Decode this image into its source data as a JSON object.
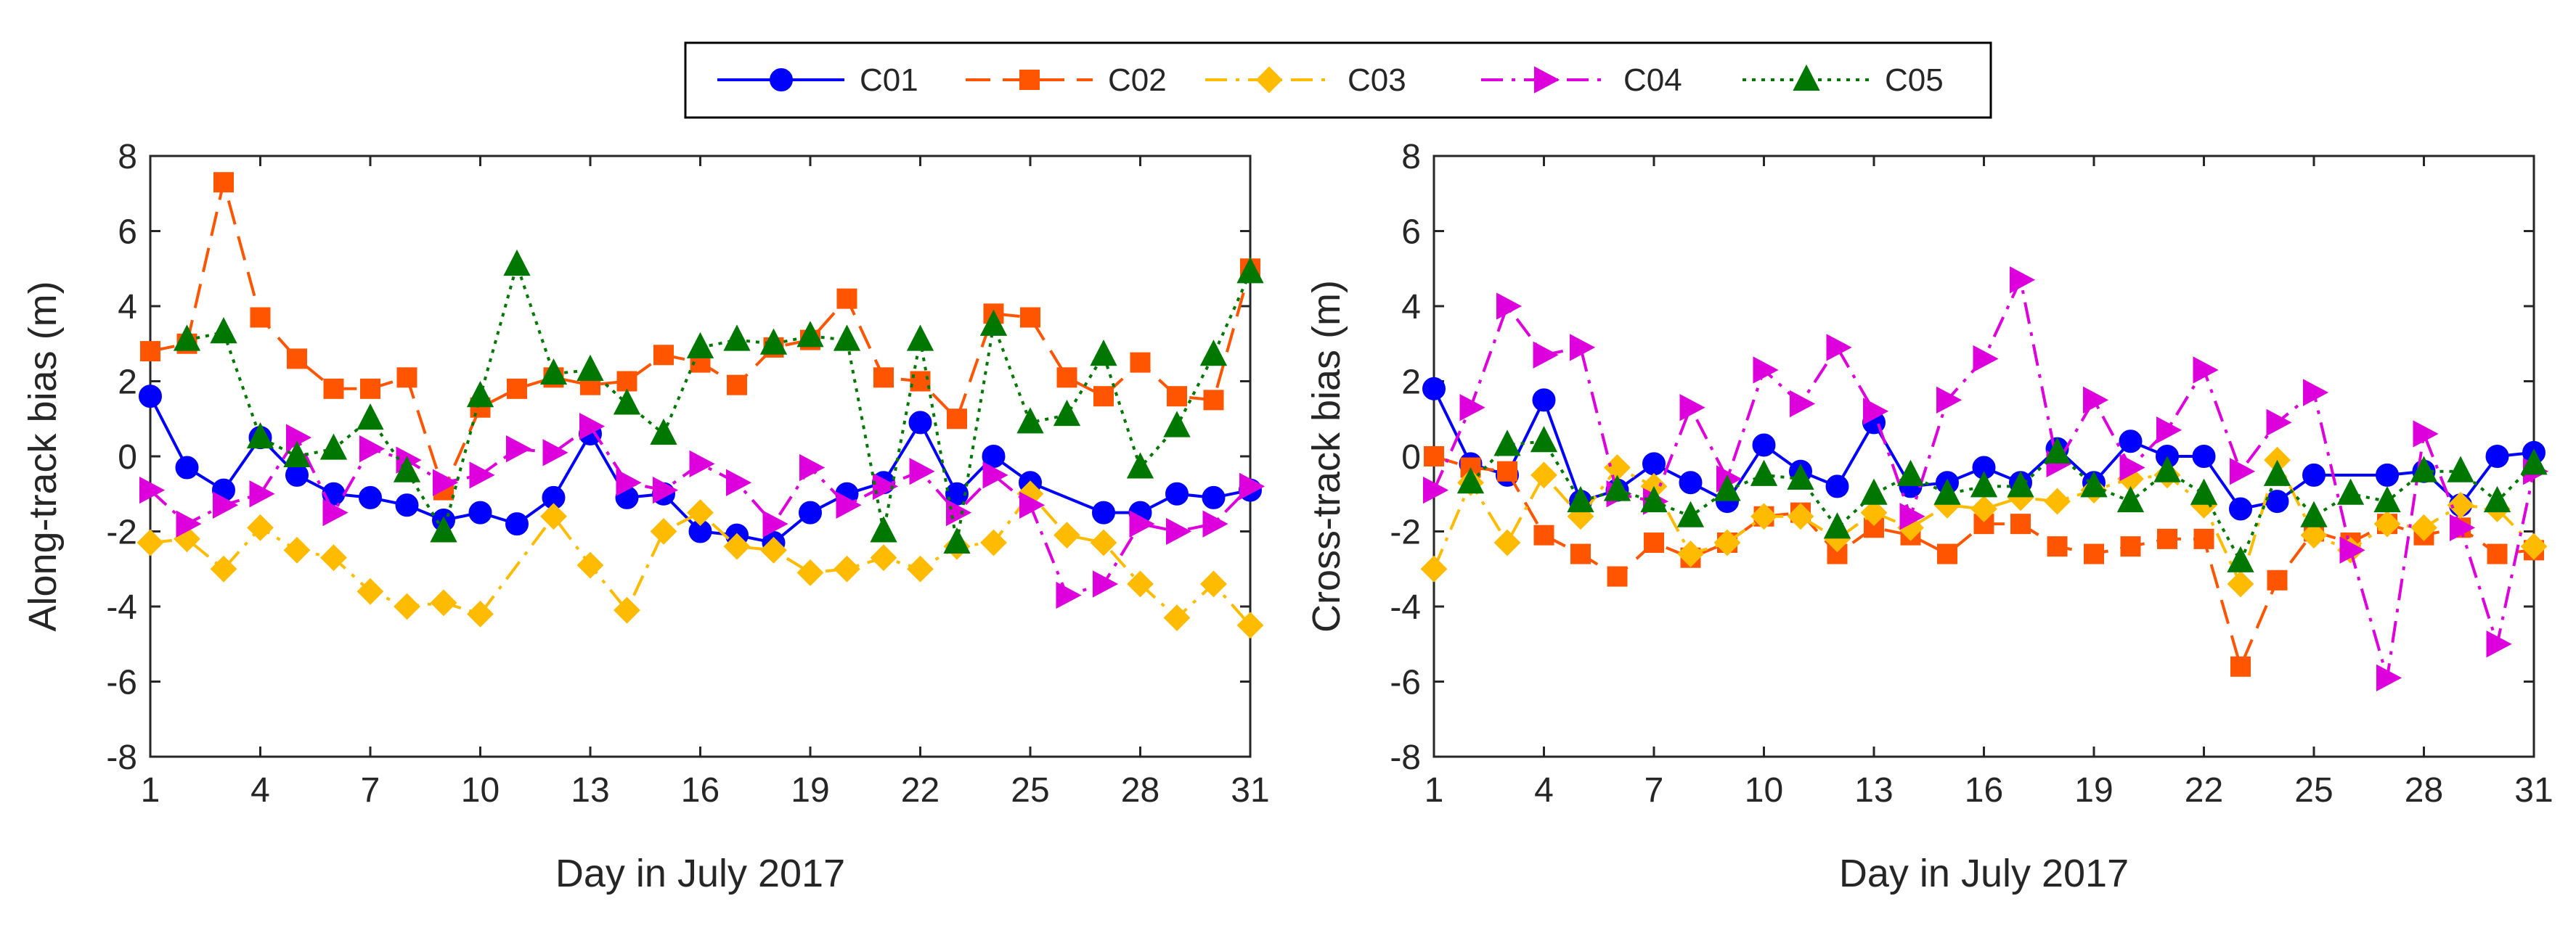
{
  "legend": {
    "entries": [
      {
        "label": "C01",
        "color": "#0000ff",
        "marker": "circle",
        "line": "solid"
      },
      {
        "label": "C02",
        "color": "#ff5500",
        "marker": "square",
        "line": "dashed"
      },
      {
        "label": "C03",
        "color": "#ffbb00",
        "marker": "diamond",
        "line": "dashdot"
      },
      {
        "label": "C04",
        "color": "#dd00dd",
        "marker": "triangle-right",
        "line": "dashdot"
      },
      {
        "label": "C05",
        "color": "#007700",
        "marker": "triangle-up",
        "line": "dotted"
      }
    ]
  },
  "chart_data": [
    {
      "type": "line",
      "title": "",
      "xlabel": "Day in July 2017",
      "ylabel": "Along-track bias (m)",
      "xlim": [
        1,
        31
      ],
      "ylim": [
        -8,
        8
      ],
      "xticks": [
        1,
        4,
        7,
        10,
        13,
        16,
        19,
        22,
        25,
        28,
        31
      ],
      "yticks": [
        -8,
        -6,
        -4,
        -2,
        0,
        2,
        4,
        6,
        8
      ],
      "grid": false,
      "series": [
        {
          "name": "C01",
          "x": [
            1,
            2,
            3,
            4,
            5,
            6,
            7,
            8,
            9,
            10,
            11,
            12,
            13,
            14,
            15,
            16,
            17,
            18,
            19,
            20,
            21,
            22,
            23,
            24,
            25,
            27,
            28,
            29,
            30,
            31
          ],
          "values": [
            1.6,
            -0.3,
            -0.9,
            0.5,
            -0.5,
            -1.0,
            -1.1,
            -1.3,
            -1.7,
            -1.5,
            -1.8,
            -1.1,
            0.6,
            -1.1,
            -1.0,
            -2.0,
            -2.1,
            -2.3,
            -1.5,
            -1.0,
            -0.7,
            0.9,
            -1.0,
            0.0,
            -0.7,
            -1.5,
            -1.5,
            -1.0,
            -1.1,
            -0.9
          ]
        },
        {
          "name": "C02",
          "x": [
            1,
            2,
            3,
            4,
            5,
            6,
            7,
            8,
            9,
            10,
            11,
            12,
            13,
            14,
            15,
            16,
            17,
            18,
            19,
            20,
            21,
            22,
            23,
            24,
            25,
            26,
            27,
            28,
            29,
            30,
            31
          ],
          "values": [
            2.8,
            3.0,
            7.3,
            3.7,
            2.6,
            1.8,
            1.8,
            2.1,
            -0.9,
            1.3,
            1.8,
            2.1,
            1.9,
            2.0,
            2.7,
            2.5,
            1.9,
            2.9,
            3.1,
            4.2,
            2.1,
            2.0,
            1.0,
            3.8,
            3.7,
            2.1,
            1.6,
            2.5,
            1.6,
            1.5,
            5.0
          ]
        },
        {
          "name": "C03",
          "x": [
            1,
            2,
            3,
            4,
            5,
            6,
            7,
            8,
            9,
            10,
            12,
            13,
            14,
            15,
            16,
            17,
            18,
            19,
            20,
            21,
            22,
            23,
            24,
            25,
            26,
            27,
            28,
            29,
            30,
            31
          ],
          "values": [
            -2.3,
            -2.2,
            -3.0,
            -1.9,
            -2.5,
            -2.7,
            -3.6,
            -4.0,
            -3.9,
            -4.2,
            -1.6,
            -2.9,
            -4.1,
            -2.0,
            -1.5,
            -2.4,
            -2.5,
            -3.1,
            -3.0,
            -2.7,
            -3.0,
            -2.4,
            -2.3,
            -1.0,
            -2.1,
            -2.3,
            -3.4,
            -4.3,
            -3.4,
            -4.5
          ]
        },
        {
          "name": "C04",
          "x": [
            1,
            2,
            3,
            4,
            5,
            6,
            7,
            8,
            9,
            10,
            11,
            12,
            13,
            14,
            15,
            16,
            17,
            18,
            19,
            20,
            21,
            22,
            23,
            24,
            25,
            26,
            27,
            28,
            29,
            30,
            31
          ],
          "values": [
            -0.9,
            -1.8,
            -1.3,
            -1.0,
            0.5,
            -1.5,
            0.2,
            -0.1,
            -0.7,
            -0.5,
            0.2,
            0.1,
            0.8,
            -0.7,
            -0.9,
            -0.2,
            -0.7,
            -1.8,
            -0.3,
            -1.3,
            -0.8,
            -0.4,
            -1.5,
            -0.5,
            -1.3,
            -3.7,
            -3.4,
            -1.8,
            -2.0,
            -1.8,
            -0.8
          ]
        },
        {
          "name": "C05",
          "x": [
            2,
            3,
            4,
            5,
            6,
            7,
            8,
            9,
            10,
            11,
            12,
            13,
            14,
            15,
            16,
            17,
            18,
            19,
            20,
            21,
            22,
            23,
            24,
            25,
            26,
            27,
            28,
            29,
            30,
            31
          ],
          "values": [
            3.1,
            3.3,
            0.5,
            0.0,
            0.2,
            1.0,
            -0.4,
            -2.0,
            1.6,
            5.1,
            2.2,
            2.3,
            1.4,
            0.6,
            2.9,
            3.1,
            3.0,
            3.2,
            3.1,
            -2.0,
            3.1,
            -2.3,
            3.5,
            0.9,
            1.1,
            2.7,
            -0.3,
            0.8,
            2.7,
            4.9
          ]
        }
      ]
    },
    {
      "type": "line",
      "title": "",
      "xlabel": "Day in July 2017",
      "ylabel": "Cross-track bias (m)",
      "xlim": [
        1,
        31
      ],
      "ylim": [
        -8,
        8
      ],
      "xticks": [
        1,
        4,
        7,
        10,
        13,
        16,
        19,
        22,
        25,
        28,
        31
      ],
      "yticks": [
        -8,
        -6,
        -4,
        -2,
        0,
        2,
        4,
        6,
        8
      ],
      "grid": false,
      "series": [
        {
          "name": "C01",
          "x": [
            1,
            2,
            3,
            4,
            5,
            6,
            7,
            8,
            9,
            10,
            11,
            12,
            13,
            14,
            15,
            16,
            17,
            18,
            19,
            20,
            21,
            22,
            23,
            24,
            25,
            27,
            28,
            29,
            30,
            31
          ],
          "values": [
            1.8,
            -0.2,
            -0.5,
            1.5,
            -1.2,
            -0.9,
            -0.2,
            -0.7,
            -1.2,
            0.3,
            -0.4,
            -0.8,
            0.9,
            -0.8,
            -0.7,
            -0.3,
            -0.7,
            0.2,
            -0.7,
            0.4,
            0.0,
            0.0,
            -1.4,
            -1.2,
            -0.5,
            -0.5,
            -0.4,
            -1.3,
            0.0,
            0.1
          ]
        },
        {
          "name": "C02",
          "x": [
            1,
            2,
            3,
            4,
            5,
            6,
            7,
            8,
            9,
            10,
            11,
            12,
            13,
            14,
            15,
            16,
            17,
            18,
            19,
            20,
            21,
            22,
            23,
            24,
            25,
            26,
            27,
            28,
            29,
            30,
            31
          ],
          "values": [
            0.0,
            -0.3,
            -0.4,
            -2.1,
            -2.6,
            -3.2,
            -2.3,
            -2.7,
            -2.3,
            -1.6,
            -1.5,
            -2.6,
            -1.9,
            -2.1,
            -2.6,
            -1.8,
            -1.8,
            -2.4,
            -2.6,
            -2.4,
            -2.2,
            -2.2,
            -5.6,
            -3.3,
            -2.0,
            -2.3,
            -1.8,
            -2.1,
            -1.9,
            -2.6,
            -2.5
          ]
        },
        {
          "name": "C03",
          "x": [
            1,
            2,
            3,
            4,
            5,
            6,
            7,
            8,
            9,
            10,
            11,
            12,
            13,
            14,
            15,
            16,
            17,
            18,
            19,
            20,
            21,
            22,
            23,
            24,
            25,
            26,
            27,
            28,
            29,
            30,
            31
          ],
          "values": [
            -3.0,
            -0.7,
            -2.3,
            -0.5,
            -1.6,
            -0.3,
            -0.8,
            -2.6,
            -2.3,
            -1.6,
            -1.6,
            -2.2,
            -1.5,
            -1.9,
            -1.3,
            -1.4,
            -1.1,
            -1.2,
            -0.9,
            -0.6,
            -0.5,
            -1.3,
            -3.4,
            -0.1,
            -2.1,
            -2.5,
            -1.8,
            -1.9,
            -1.3,
            -1.4,
            -2.4
          ]
        },
        {
          "name": "C04",
          "x": [
            1,
            2,
            3,
            4,
            5,
            6,
            7,
            8,
            9,
            10,
            11,
            12,
            13,
            14,
            15,
            16,
            17,
            18,
            19,
            20,
            21,
            22,
            23,
            24,
            25,
            26,
            27,
            28,
            29,
            30,
            31
          ],
          "values": [
            -0.9,
            1.3,
            4.0,
            2.7,
            2.9,
            -1.0,
            -1.2,
            1.3,
            -0.6,
            2.3,
            1.4,
            2.9,
            1.2,
            -1.6,
            1.5,
            2.6,
            4.7,
            -0.2,
            1.5,
            -0.3,
            0.7,
            2.3,
            -0.4,
            0.9,
            1.7,
            -2.5,
            -5.9,
            0.6,
            -1.9,
            -5.0,
            -0.4
          ]
        },
        {
          "name": "C05",
          "x": [
            2,
            3,
            4,
            5,
            6,
            7,
            8,
            9,
            10,
            11,
            12,
            13,
            14,
            15,
            16,
            17,
            18,
            19,
            20,
            21,
            22,
            23,
            24,
            25,
            26,
            27,
            28,
            29,
            30,
            31
          ],
          "values": [
            -0.7,
            0.3,
            0.4,
            -1.2,
            -0.9,
            -1.2,
            -1.6,
            -0.9,
            -0.5,
            -0.6,
            -1.9,
            -1.0,
            -0.5,
            -1.0,
            -0.8,
            -0.8,
            0.1,
            -0.8,
            -1.2,
            -0.4,
            -1.0,
            -2.8,
            -0.5,
            -1.6,
            -1.0,
            -1.2,
            -0.4,
            -0.4,
            -1.2,
            -0.2
          ]
        }
      ]
    }
  ]
}
